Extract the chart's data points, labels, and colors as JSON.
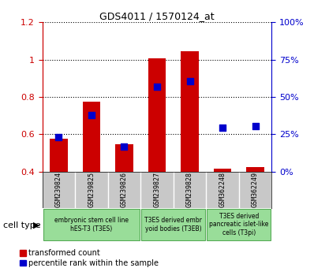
{
  "title": "GDS4011 / 1570124_at",
  "samples": [
    "GSM239824",
    "GSM239825",
    "GSM239826",
    "GSM239827",
    "GSM239828",
    "GSM362248",
    "GSM362249"
  ],
  "red_values": [
    0.575,
    0.775,
    0.545,
    1.005,
    1.045,
    0.415,
    0.425
  ],
  "blue_values": [
    0.585,
    0.705,
    0.535,
    0.855,
    0.885,
    0.635,
    0.645
  ],
  "red_base": 0.4,
  "ylim": [
    0.4,
    1.2
  ],
  "yticks": [
    0.4,
    0.6,
    0.8,
    1.0,
    1.2
  ],
  "ytick_labels_left": [
    "0.4",
    "0.6",
    "0.8",
    "1",
    "1.2"
  ],
  "ytick_labels_right": [
    "0%",
    "25%",
    "50%",
    "75%",
    "100%"
  ],
  "bar_color": "#cc0000",
  "dot_color": "#0000cc",
  "bar_width": 0.55,
  "dot_size": 28,
  "groups": [
    {
      "label": "embryonic stem cell line\nhES-T3 (T3ES)",
      "start": 0,
      "end": 2,
      "color": "#aaddaa"
    },
    {
      "label": "T3ES derived embr\nyoid bodies (T3EB)",
      "start": 3,
      "end": 4,
      "color": "#aaddaa"
    },
    {
      "label": "T3ES derived\npancreatic islet-like\ncells (T3pi)",
      "start": 5,
      "end": 6,
      "color": "#aaddaa"
    }
  ],
  "cell_type_label": "cell type",
  "legend_red": "transformed count",
  "legend_blue": "percentile rank within the sample",
  "tick_color_left": "#cc0000",
  "tick_color_right": "#0000cc",
  "sample_bg": "#c8c8c8",
  "grid_color": "#000000"
}
